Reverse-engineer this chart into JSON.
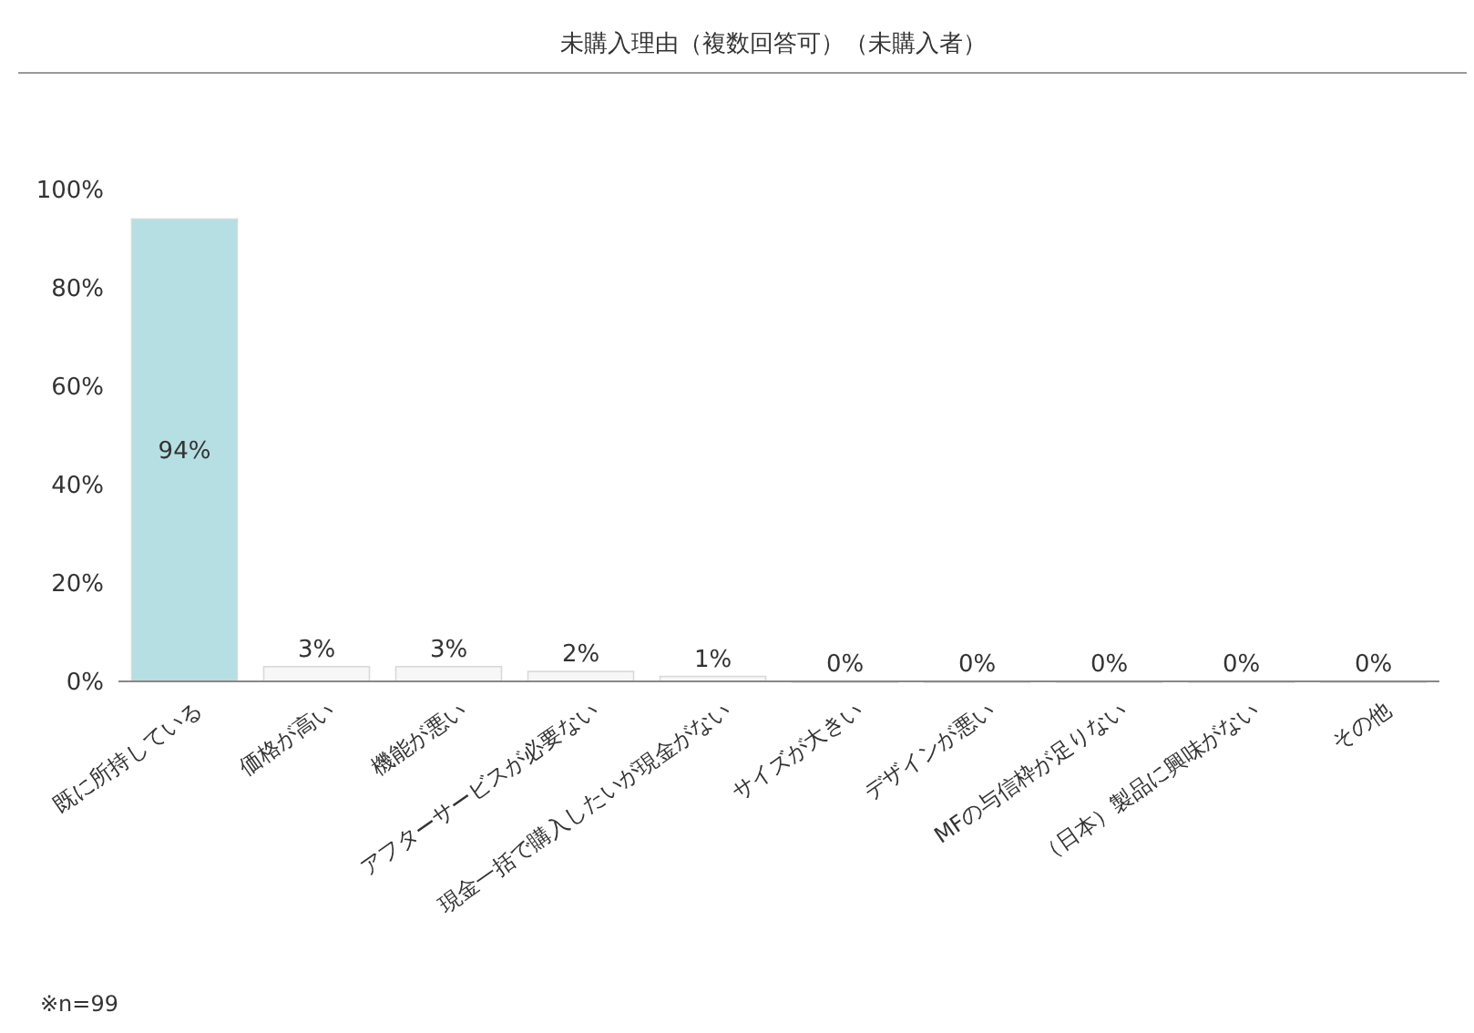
{
  "chart_data": {
    "type": "bar",
    "title": "未購入理由（複数回答可）（未購入者）",
    "categories": [
      "既に所持している",
      "価格が高い",
      "機能が悪い",
      "アフターサービスが必要ない",
      "現金一括で購入したいが現金がない",
      "サイズが大きい",
      "デザインが悪い",
      "MFの与信枠が足りない",
      "（日本）製品に興味がない",
      "その他"
    ],
    "values": [
      94,
      3,
      3,
      2,
      1,
      0,
      0,
      0,
      0,
      0
    ],
    "value_labels": [
      "94%",
      "3%",
      "3%",
      "2%",
      "1%",
      "0%",
      "0%",
      "0%",
      "0%",
      "0%"
    ],
    "colors": [
      "#b5dfe2",
      "#f7f7f7",
      "#f7f7f7",
      "#f7f7f7",
      "#f7f7f7",
      "#f7f7f7",
      "#f7f7f7",
      "#f7f7f7",
      "#f7f7f7",
      "#f7f7f7"
    ],
    "ylim": [
      0,
      100
    ],
    "yticks": [
      {
        "value": 0,
        "label": "0%"
      },
      {
        "value": 20,
        "label": "20%"
      },
      {
        "value": 40,
        "label": "40%"
      },
      {
        "value": 60,
        "label": "60%"
      },
      {
        "value": 80,
        "label": "80%"
      },
      {
        "value": 100,
        "label": "100%"
      }
    ],
    "annotations": [
      "※n=99"
    ]
  }
}
